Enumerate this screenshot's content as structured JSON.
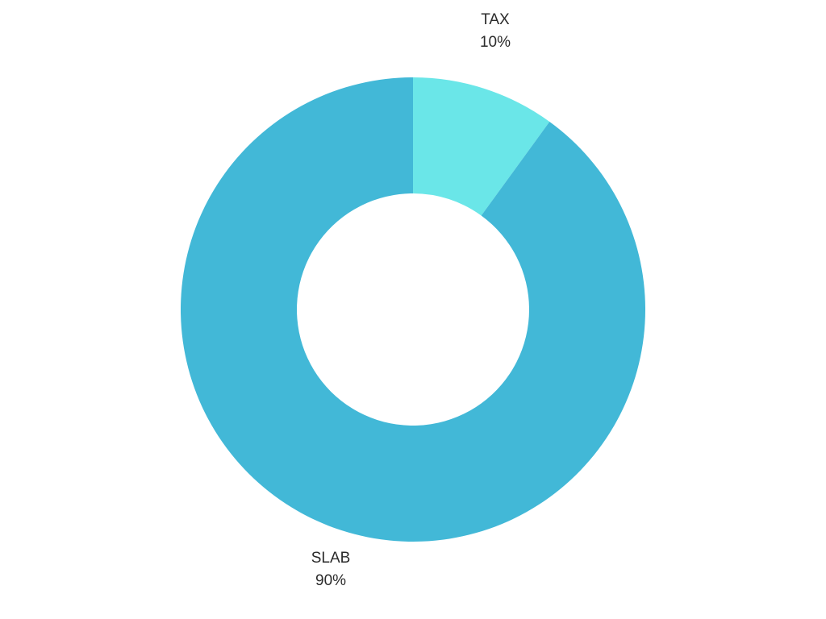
{
  "chart_data": {
    "type": "pie",
    "subtype": "donut",
    "slices": [
      {
        "label": "TAX",
        "value": 10,
        "percent_label": "10%",
        "color": "#6ae6e8"
      },
      {
        "label": "SLAB",
        "value": 90,
        "percent_label": "90%",
        "color": "#42b8d7"
      }
    ],
    "title": "",
    "legend": "none"
  }
}
